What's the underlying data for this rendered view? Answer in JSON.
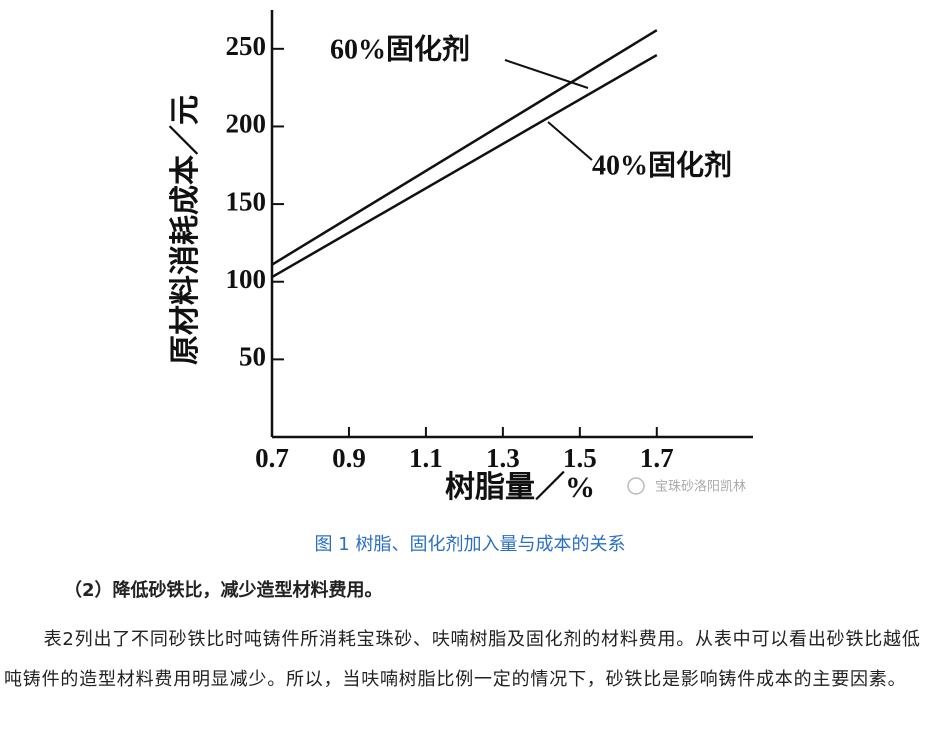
{
  "chart_data": {
    "type": "line",
    "x": [
      0.7,
      1.7
    ],
    "series": [
      {
        "name": "60%固化剂",
        "color": "#111111",
        "values": [
          111,
          262
        ]
      },
      {
        "name": "40%固化剂",
        "color": "#111111",
        "values": [
          103,
          246
        ]
      }
    ],
    "xlim": [
      0.7,
      1.95
    ],
    "xticks": [
      0.7,
      0.9,
      1.1,
      1.3,
      1.5,
      1.7
    ],
    "ylim": [
      0,
      275
    ],
    "yticks": [
      50,
      100,
      150,
      200,
      250
    ],
    "xlabel": "树脂量／%",
    "ylabel": "原材料消耗成本／元"
  },
  "watermark": "宝珠砂洛阳凯林",
  "caption": "图 1  树脂、固化剂加入量与成本的关系",
  "heading": "（2）降低砂铁比，减少造型材料费用。",
  "paragraph": "表2列出了不同砂铁比时吨铸件所消耗宝珠砂、呋喃树脂及固化剂的材料费用。从表中可以看出砂铁比越低吨铸件的造型材料费用明显减少。所以，当呋喃树脂比例一定的情况下，砂铁比是影响铸件成本的主要因素。"
}
